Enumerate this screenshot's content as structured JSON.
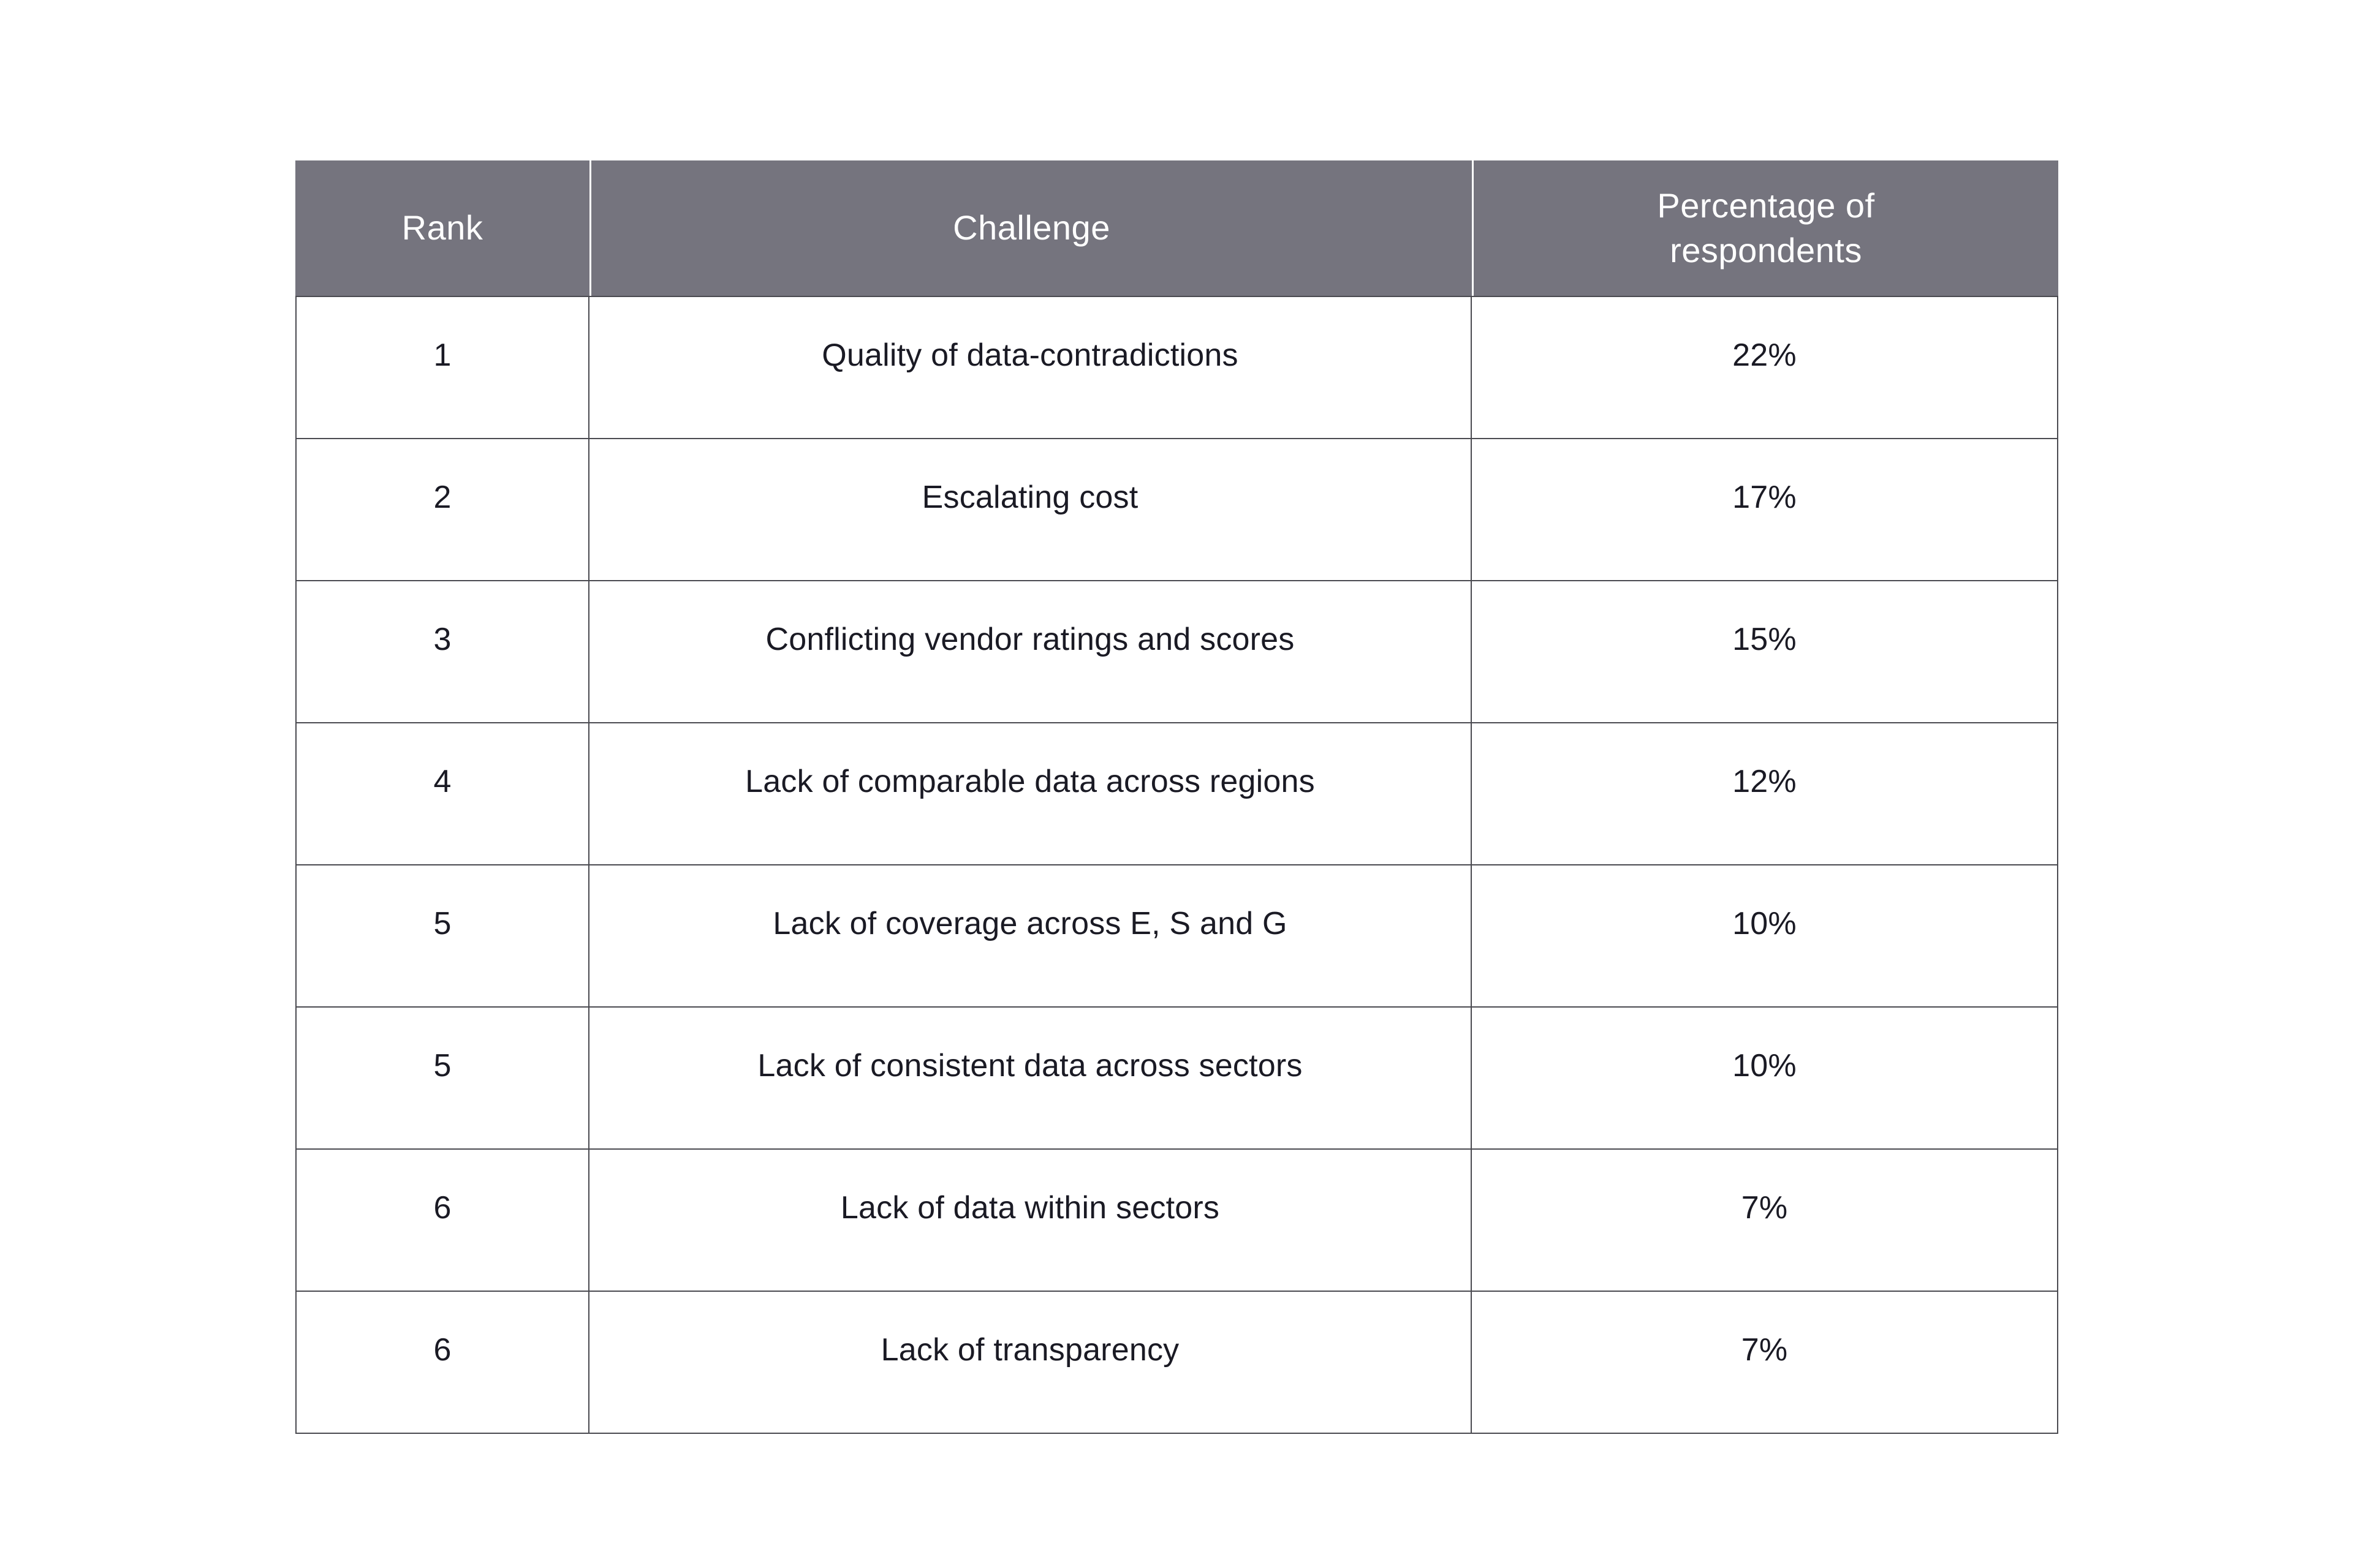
{
  "colors": {
    "header_background": "#75747e",
    "header_text": "#ffffff",
    "body_text": "#1a1a24",
    "grid_line": "#4a4a50",
    "page_background": "#ffffff"
  },
  "chart_data": {
    "type": "table",
    "columns": [
      "Rank",
      "Challenge",
      "Percentage of respondents"
    ],
    "rows": [
      [
        "1",
        "Quality of data-contradictions",
        "22%"
      ],
      [
        "2",
        "Escalating cost",
        "17%"
      ],
      [
        "3",
        "Conflicting vendor ratings and scores",
        "15%"
      ],
      [
        "4",
        "Lack of comparable data across regions",
        "12%"
      ],
      [
        "5",
        "Lack of coverage across E, S and G",
        "10%"
      ],
      [
        "5",
        "Lack of consistent data across sectors",
        "10%"
      ],
      [
        "6",
        "Lack of data within sectors",
        "7%"
      ],
      [
        "6",
        "Lack of transparency",
        "7%"
      ]
    ],
    "percent_values": [
      22,
      17,
      15,
      12,
      10,
      10,
      7,
      7
    ],
    "layout": {
      "grid": "on",
      "header_style": "solid-gray",
      "text_alignment": "center"
    }
  }
}
